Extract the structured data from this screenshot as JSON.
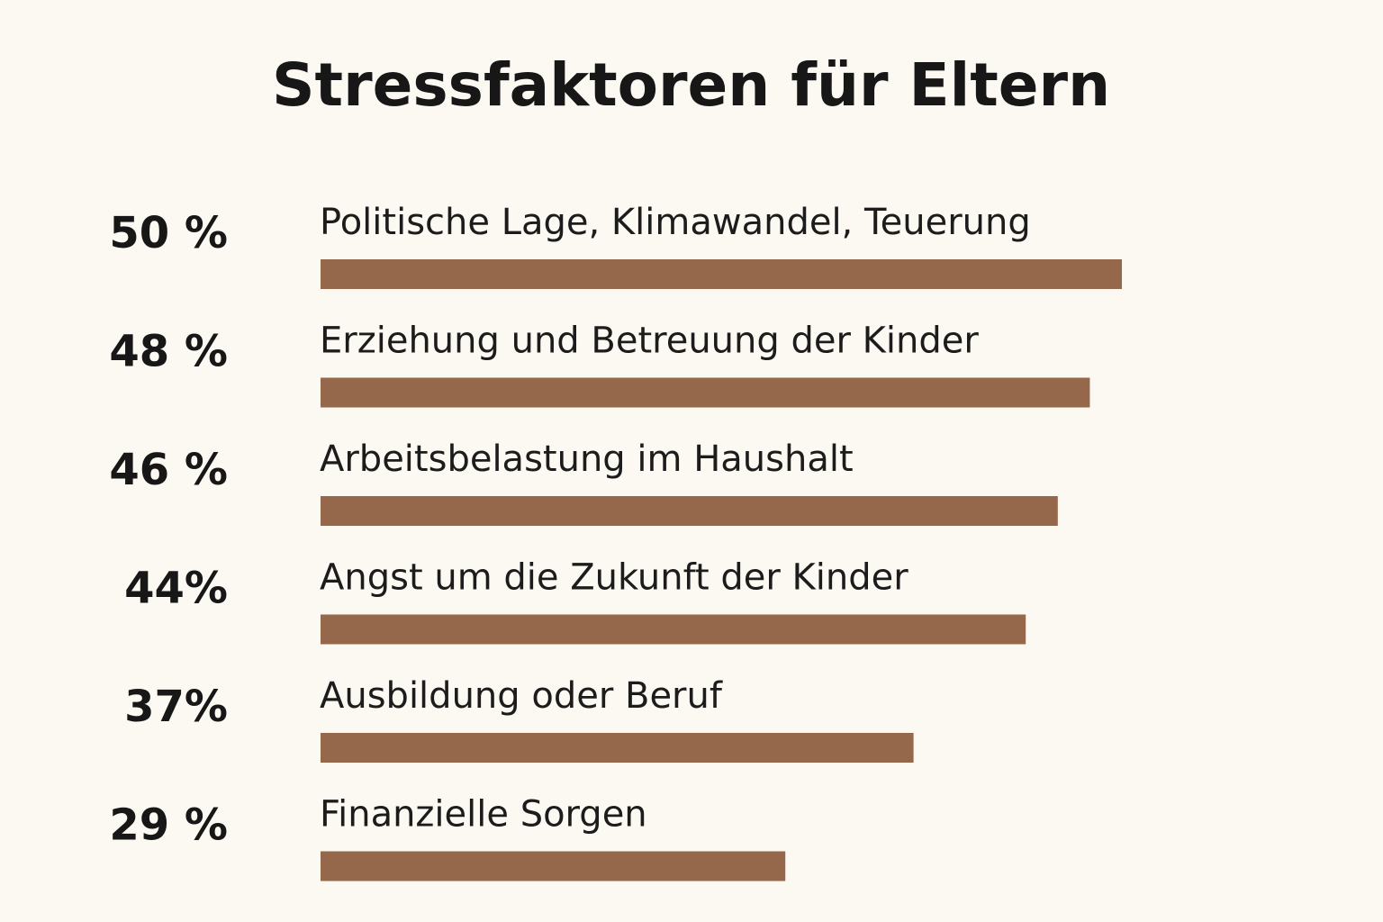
{
  "chart_data": {
    "type": "bar",
    "orientation": "horizontal",
    "title": "Stressfaktoren für Eltern",
    "categories": [
      "Politische Lage, Klimawandel, Teuerung",
      "Erziehung und Betreuung der Kinder",
      "Arbeitsbelastung im Haushalt",
      "Angst um die Zukunft der Kinder",
      "Ausbildung oder Beruf",
      "Finanzielle Sorgen"
    ],
    "values": [
      50,
      48,
      46,
      44,
      37,
      29
    ],
    "value_labels": [
      "50 %",
      "48 %",
      "46 %",
      "44%",
      "37%",
      "29 %"
    ],
    "unit": "%",
    "xlim": [
      0,
      50
    ],
    "grid": false,
    "legend": "none",
    "bar_color": "#95674b"
  }
}
